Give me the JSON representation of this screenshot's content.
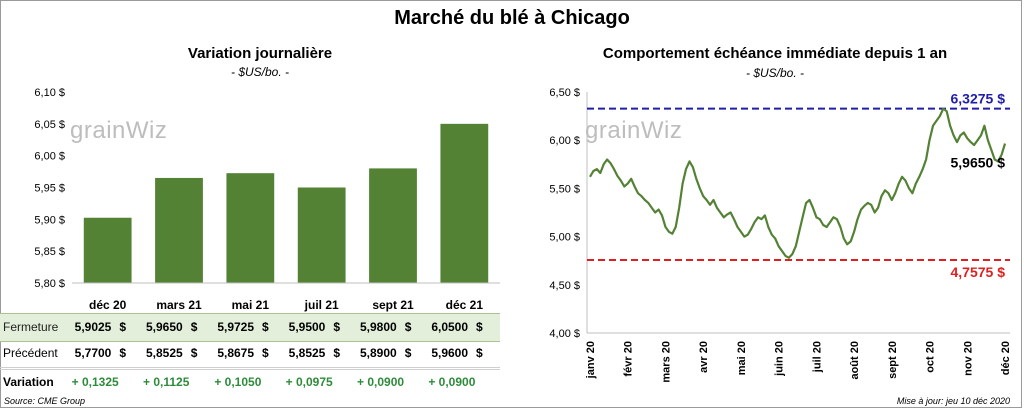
{
  "title": "Marché du blé à Chicago",
  "source": "Source: CME Group",
  "update": "Mise à jour: jeu 10 déc 2020",
  "watermark": "grainWiz",
  "colors": {
    "bar": "#548235",
    "line": "#548235",
    "high": "#1f1fa8",
    "low": "#e02020",
    "variation": "#2e8b3a"
  },
  "table": {
    "rows": [
      {
        "label": "Fermeture",
        "values": [
          "5,9025",
          "5,9650",
          "5,9725",
          "5,9500",
          "5,9800",
          "6,0500"
        ]
      },
      {
        "label": "Précédent",
        "values": [
          "5,7700",
          "5,8525",
          "5,8675",
          "5,8525",
          "5,8900",
          "5,9600"
        ]
      },
      {
        "label": "Variation",
        "values": [
          "+ 0,1325",
          "+ 0,1125",
          "+ 0,1050",
          "+ 0,0975",
          "+ 0,0900",
          "+ 0,0900"
        ]
      }
    ],
    "currency": "$"
  },
  "chart_data": [
    {
      "type": "bar",
      "title": "Variation journalière",
      "subtitle": "- $US/bo. -",
      "categories": [
        "déc 20",
        "mars 21",
        "mai 21",
        "juil 21",
        "sept 21",
        "déc 21"
      ],
      "values": [
        5.9025,
        5.965,
        5.9725,
        5.95,
        5.98,
        6.05
      ],
      "ylim": [
        5.8,
        6.1
      ],
      "yticks": [
        "5,80 $",
        "5,85 $",
        "5,90 $",
        "5,95 $",
        "6,00 $",
        "6,05 $",
        "6,10 $"
      ],
      "grid": false
    },
    {
      "type": "line",
      "title": "Comportement échéance immédiate depuis 1 an",
      "subtitle": "- $US/bo. -",
      "x_labels": [
        "janv 20",
        "févr 20",
        "mars 20",
        "avr 20",
        "mai 20",
        "juin 20",
        "juil 20",
        "août 20",
        "sept 20",
        "oct 20",
        "nov 20",
        "déc 20"
      ],
      "ylim": [
        4.0,
        6.5
      ],
      "yticks": [
        "4,00 $",
        "4,50 $",
        "5,00 $",
        "5,50 $",
        "6,00 $",
        "6,50 $"
      ],
      "series": [
        {
          "values": [
            5.62,
            5.68,
            5.7,
            5.66,
            5.75,
            5.8,
            5.76,
            5.7,
            5.63,
            5.58,
            5.52,
            5.55,
            5.6,
            5.52,
            5.45,
            5.42,
            5.38,
            5.35,
            5.3,
            5.25,
            5.28,
            5.22,
            5.1,
            5.05,
            5.03,
            5.1,
            5.3,
            5.55,
            5.7,
            5.78,
            5.72,
            5.6,
            5.5,
            5.42,
            5.38,
            5.33,
            5.38,
            5.3,
            5.25,
            5.2,
            5.23,
            5.25,
            5.18,
            5.1,
            5.05,
            5.0,
            5.02,
            5.08,
            5.15,
            5.2,
            5.18,
            5.22,
            5.1,
            5.02,
            4.98,
            4.9,
            4.85,
            4.8,
            4.78,
            4.82,
            4.9,
            5.05,
            5.2,
            5.35,
            5.38,
            5.3,
            5.2,
            5.18,
            5.12,
            5.1,
            5.15,
            5.2,
            5.18,
            5.1,
            4.98,
            4.92,
            4.95,
            5.05,
            5.18,
            5.28,
            5.32,
            5.35,
            5.33,
            5.25,
            5.3,
            5.42,
            5.48,
            5.45,
            5.38,
            5.45,
            5.55,
            5.62,
            5.58,
            5.5,
            5.45,
            5.55,
            5.62,
            5.7,
            5.8,
            6.0,
            6.15,
            6.2,
            6.25,
            6.3275,
            6.3,
            6.15,
            6.05,
            5.98,
            6.05,
            6.08,
            6.02,
            5.98,
            5.95,
            6.0,
            6.05,
            6.15,
            6.0,
            5.9,
            5.8,
            5.78,
            5.85,
            5.965
          ]
        }
      ],
      "high": {
        "value": 6.3275,
        "label": "6,3275 $"
      },
      "low": {
        "value": 4.7575,
        "label": "4,7575 $"
      },
      "last": {
        "value": 5.965,
        "label": "5,9650 $"
      },
      "grid": false
    }
  ]
}
